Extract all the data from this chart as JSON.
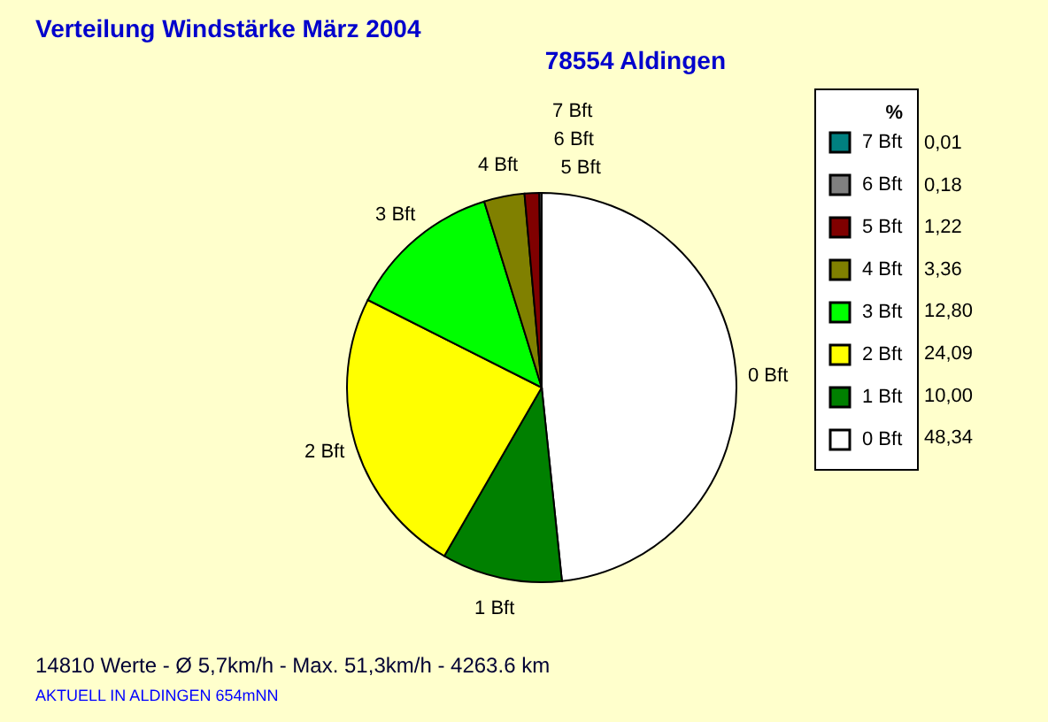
{
  "chart_data": {
    "type": "pie",
    "title": "Verteilung Windstärke  März 2004",
    "subtitle": "78554 Aldingen",
    "legend_title": "%",
    "legend": "right",
    "categories": [
      "0 Bft",
      "1 Bft",
      "2 Bft",
      "3 Bft",
      "4 Bft",
      "5 Bft",
      "6 Bft",
      "7 Bft"
    ],
    "values": [
      48.34,
      10.0,
      24.09,
      12.8,
      3.36,
      1.22,
      0.18,
      0.01
    ],
    "value_labels": [
      "48,34",
      "10,00",
      "24,09",
      "12,80",
      "3,36",
      "1,22",
      "0,18",
      "0,01"
    ],
    "colors": [
      "#ffffff",
      "#008000",
      "#ffff00",
      "#00ff00",
      "#808000",
      "#800000",
      "#808080",
      "#008080"
    ],
    "annotations": [
      "14810 Werte   -   Ø 5,7km/h  -  Max. 51,3km/h   -   4263.6 km",
      "AKTUELL IN ALDINGEN 654mNN"
    ]
  }
}
